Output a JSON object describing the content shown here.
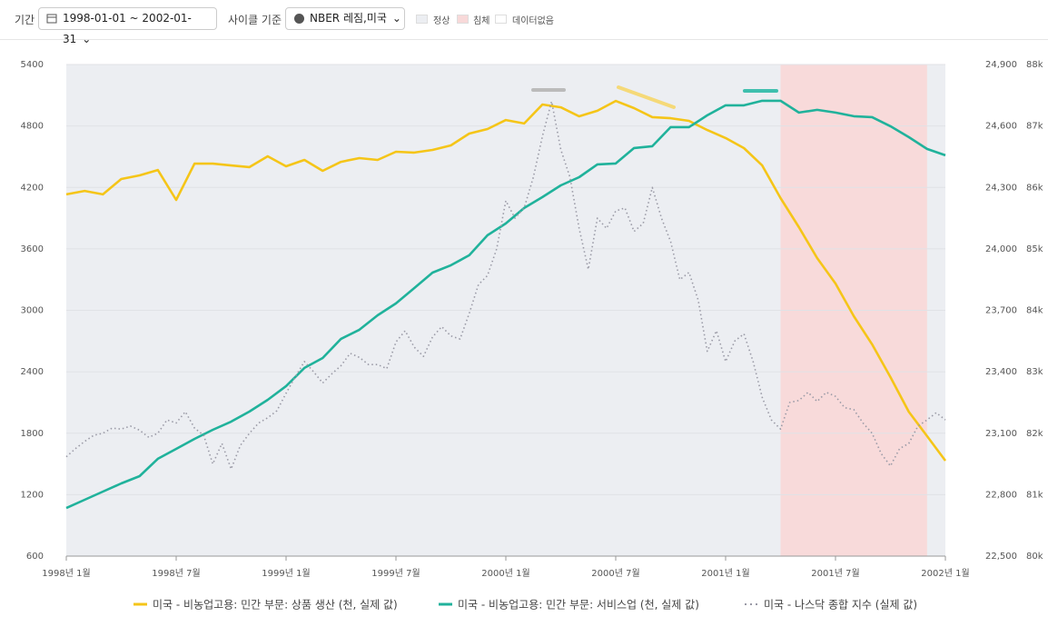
{
  "toolbar": {
    "period_label": "기간",
    "period": "1998-01-01 ~ 2002-01-31",
    "cycle_label": "사이클 기준",
    "cycle": "NBER 레짐,미국",
    "regimes": [
      "정상",
      "침체",
      "데이터없음"
    ]
  },
  "chart_data": {
    "type": "line",
    "categories": [
      "1998년 1월",
      null,
      null,
      null,
      null,
      null,
      "1998년 7월",
      null,
      null,
      null,
      null,
      null,
      "1999년 1월",
      null,
      null,
      null,
      null,
      null,
      "1999년 7월",
      null,
      null,
      null,
      null,
      null,
      "2000년 1월",
      null,
      null,
      null,
      null,
      null,
      "2000년 7월",
      null,
      null,
      null,
      null,
      null,
      "2001년 1월",
      null,
      null,
      null,
      null,
      null,
      "2001년 7월",
      null,
      null,
      null,
      null,
      null,
      "2002년 1월"
    ],
    "recession": {
      "start": 39,
      "end": 47
    },
    "ylim": [
      600,
      5400
    ],
    "yticks": [
      600,
      1200,
      1800,
      2400,
      3000,
      3600,
      4200,
      4800,
      5400
    ],
    "y2lim": [
      22500,
      24900
    ],
    "y2ticks": [
      {
        "value": 22500,
        "label": "22,500"
      },
      {
        "value": 22800,
        "label": "22,800"
      },
      {
        "value": 23100,
        "label": "23,100"
      },
      {
        "value": 23400,
        "label": "23,400"
      },
      {
        "value": 23700,
        "label": "23,700"
      },
      {
        "value": 24000,
        "label": "24,000"
      },
      {
        "value": 24300,
        "label": "24,300"
      },
      {
        "value": 24600,
        "label": "24,600"
      },
      {
        "value": 24900,
        "label": "24,900"
      }
    ],
    "y3lim": [
      80000,
      88000
    ],
    "y3ticks": [
      {
        "value": 80000,
        "label": "80k"
      },
      {
        "value": 81000,
        "label": "81k"
      },
      {
        "value": 82000,
        "label": "82k"
      },
      {
        "value": 83000,
        "label": "83k"
      },
      {
        "value": 84000,
        "label": "84k"
      },
      {
        "value": 85000,
        "label": "85k"
      },
      {
        "value": 86000,
        "label": "86k"
      },
      {
        "value": 87000,
        "label": "87k"
      },
      {
        "value": 88000,
        "label": "88k"
      }
    ],
    "grid": true,
    "series": [
      {
        "name": "미국 - 비농업고용: 민간 부문: 상품 생산 (천, 실제 값)",
        "color": "#f5c518",
        "axis": "y2",
        "values": [
          24266,
          24283,
          24266,
          24341,
          24359,
          24385,
          24239,
          24416,
          24416,
          24407,
          24399,
          24452,
          24403,
          24434,
          24381,
          24425,
          24443,
          24434,
          24474,
          24470,
          24483,
          24505,
          24563,
          24585,
          24629,
          24612,
          24705,
          24691,
          24647,
          24674,
          24722,
          24687,
          24643,
          24638,
          24625,
          24580,
          24541,
          24492,
          24407,
          24248,
          24106,
          23955,
          23831,
          23671,
          23534,
          23374,
          23205,
          23086,
          22966
        ]
      },
      {
        "name": "미국 - 비농업고용: 민간 부문: 서비스업 (천, 실제 값)",
        "color": "#20b29b",
        "axis": "y3",
        "values": [
          80784,
          80917,
          81050,
          81183,
          81302,
          81583,
          81745,
          81908,
          82056,
          82189,
          82352,
          82544,
          82766,
          83062,
          83224,
          83535,
          83683,
          83919,
          84112,
          84363,
          84614,
          84733,
          84896,
          85221,
          85413,
          85665,
          85842,
          86034,
          86167,
          86375,
          86389,
          86641,
          86670,
          86981,
          86981,
          87173,
          87336,
          87336,
          87410,
          87410,
          87218,
          87262,
          87218,
          87158,
          87144,
          86996,
          86818,
          86626,
          86522
        ]
      },
      {
        "name": "미국 - 나스닥 종합 지수 (실제 값)",
        "color": "#9a9aa6",
        "axis": "y",
        "style": "dotted",
        "x": [
          0,
          0.5,
          1,
          1.5,
          2,
          2.5,
          3,
          3.5,
          4,
          4.5,
          5,
          5.5,
          6,
          6.5,
          7,
          7.5,
          8,
          8.5,
          9,
          9.5,
          10,
          10.5,
          11,
          11.5,
          12,
          12.5,
          13,
          13.5,
          14,
          14.5,
          15,
          15.5,
          16,
          16.5,
          17,
          17.5,
          18,
          18.5,
          19,
          19.5,
          20,
          20.5,
          21,
          21.5,
          22,
          22.5,
          23,
          23.5,
          24,
          24.5,
          25,
          25.5,
          26,
          26.5,
          27,
          27.5,
          28,
          28.5,
          29,
          29.5,
          30,
          30.5,
          31,
          31.5,
          32,
          32.5,
          33,
          33.5,
          34,
          34.5,
          35,
          35.5,
          36,
          36.5,
          37,
          37.5,
          38,
          38.5,
          39,
          39.5,
          40,
          40.5,
          41,
          41.5,
          42,
          42.5,
          43,
          43.5,
          44,
          44.5,
          45,
          45.5,
          46,
          46.5,
          47,
          47.5,
          48
        ],
        "values": [
          1570,
          1650,
          1720,
          1780,
          1800,
          1850,
          1840,
          1870,
          1830,
          1760,
          1800,
          1930,
          1900,
          2010,
          1850,
          1780,
          1500,
          1700,
          1450,
          1680,
          1800,
          1900,
          1950,
          2020,
          2190,
          2350,
          2500,
          2400,
          2290,
          2380,
          2460,
          2580,
          2540,
          2470,
          2470,
          2430,
          2690,
          2800,
          2640,
          2550,
          2740,
          2840,
          2750,
          2720,
          2970,
          3250,
          3340,
          3600,
          4070,
          3900,
          4000,
          4300,
          4700,
          5040,
          4570,
          4300,
          3800,
          3400,
          3900,
          3800,
          3970,
          4000,
          3770,
          3850,
          4200,
          3900,
          3670,
          3300,
          3370,
          3100,
          2600,
          2800,
          2500,
          2700,
          2770,
          2500,
          2150,
          1930,
          1840,
          2100,
          2120,
          2200,
          2110,
          2200,
          2160,
          2050,
          2030,
          1900,
          1800,
          1600,
          1480,
          1650,
          1700,
          1870,
          1930,
          2000,
          1930
        ]
      }
    ]
  }
}
